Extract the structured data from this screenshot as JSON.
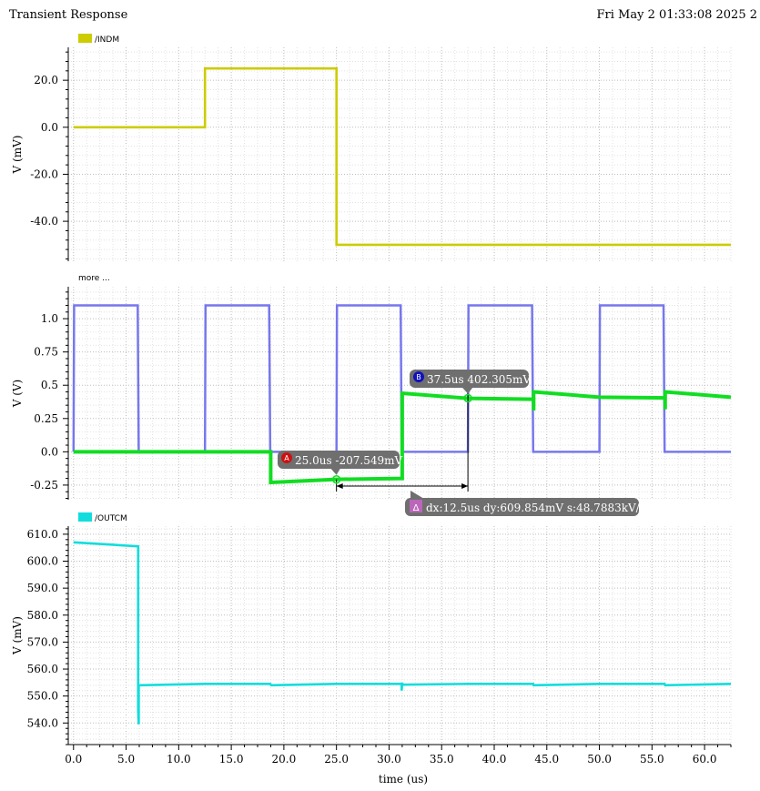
{
  "header": {
    "title": "Transient Response",
    "date": "Fri May 2 01:33:08 2025   2"
  },
  "colors": {
    "indm": "#cccc00",
    "square": "#7777ee",
    "response": "#11dd22",
    "outcm": "#11dddd",
    "marker_bg": "#6f6f6f",
    "marker_a": "#cc1111",
    "marker_b": "#1111bb",
    "delta": "#bb66bb"
  },
  "chart_data": [
    {
      "type": "line",
      "legend": "/INDM",
      "ylabel": "V (mV)",
      "yticks": [
        20.0,
        0.0,
        -20.0,
        -40.0
      ],
      "ytick_labels": [
        "20.0",
        "0.0",
        "-20.0",
        "-40.0"
      ],
      "ylim": [
        -57,
        34
      ],
      "series": [
        {
          "name": "/INDM",
          "color_key": "indm",
          "x": [
            0,
            12.5,
            12.5,
            25,
            25,
            62.5
          ],
          "y": [
            0,
            0,
            25,
            25,
            -50,
            -50
          ]
        }
      ]
    },
    {
      "type": "line",
      "legend": "more ...",
      "ylabel": "V (V)",
      "yticks": [
        1.0,
        0.75,
        0.5,
        0.25,
        0.0,
        -0.25
      ],
      "ytick_labels": [
        "1.0",
        "0.75",
        "0.5",
        "0.25",
        "0.0",
        "-0.25"
      ],
      "ylim": [
        -0.36,
        1.24
      ],
      "series": [
        {
          "color_key": "square",
          "x": [
            0,
            0.05,
            0.2,
            6.1,
            6.2,
            12.5,
            12.55,
            12.7,
            18.6,
            18.7,
            25,
            25.05,
            25.2,
            31.1,
            31.2,
            37.5,
            37.55,
            37.7,
            43.6,
            43.7,
            50,
            50.05,
            50.2,
            56.1,
            56.2,
            62.5
          ],
          "y": [
            0,
            1.1,
            1.1,
            1.1,
            0,
            0,
            1.1,
            1.1,
            1.1,
            0,
            0,
            1.1,
            1.1,
            1.1,
            0,
            0,
            1.1,
            1.1,
            1.1,
            0,
            0,
            1.1,
            1.1,
            1.1,
            0,
            0
          ]
        },
        {
          "color_key": "response",
          "x": [
            0,
            18.75,
            18.75,
            25,
            31.25,
            31.25,
            37.5,
            43.75,
            43.75,
            43.75,
            50,
            56.25,
            56.25,
            56.25,
            62.5
          ],
          "y": [
            0,
            0,
            -0.23,
            -0.207,
            -0.2,
            0.44,
            0.402,
            0.395,
            0.31,
            0.45,
            0.41,
            0.405,
            0.32,
            0.45,
            0.41
          ]
        }
      ],
      "markers": [
        {
          "label": "A",
          "x": 25.0,
          "y": -0.207549,
          "text": "25.0us -207.549mV"
        },
        {
          "label": "B",
          "x": 37.5,
          "y": 0.402305,
          "text": "37.5us 402.305mV"
        }
      ],
      "delta": {
        "label": "Δ",
        "text": "dx:12.5us dy:609.854mV s:48.7883kV/s"
      }
    },
    {
      "type": "line",
      "legend": "/OUTCM",
      "ylabel": "V (mV)",
      "yticks": [
        610.0,
        600.0,
        590.0,
        580.0,
        570.0,
        560.0,
        550.0,
        540.0
      ],
      "ytick_labels": [
        "610.0",
        "600.0",
        "590.0",
        "580.0",
        "570.0",
        "560.0",
        "550.0",
        "540.0"
      ],
      "ylim": [
        532,
        613
      ],
      "series": [
        {
          "name": "/OUTCM",
          "color_key": "outcm",
          "x": [
            0,
            6.15,
            6.15,
            6.2,
            6.2,
            6.3,
            12.5,
            18.7,
            18.8,
            25,
            31.2,
            31.2,
            31.25,
            31.25,
            37.5,
            43.7,
            43.75,
            50,
            56.2,
            56.25,
            62.5
          ],
          "y": [
            607,
            605.5,
            545,
            539.5,
            554,
            554,
            554.5,
            554.5,
            554,
            554.5,
            554.5,
            552,
            555,
            554.2,
            554.5,
            554.5,
            554,
            554.5,
            554.5,
            554,
            554.5
          ]
        }
      ]
    }
  ],
  "xaxis": {
    "label": "time (us)",
    "ticks": [
      0,
      5,
      10,
      15,
      20,
      25,
      30,
      35,
      40,
      45,
      50,
      55,
      60
    ],
    "tick_labels": [
      "0.0",
      "5.0",
      "10.0",
      "15.0",
      "20.0",
      "25.0",
      "30.0",
      "35.0",
      "40.0",
      "45.0",
      "50.0",
      "55.0",
      "60.0"
    ],
    "xlim": [
      -0.5,
      62.5
    ]
  }
}
